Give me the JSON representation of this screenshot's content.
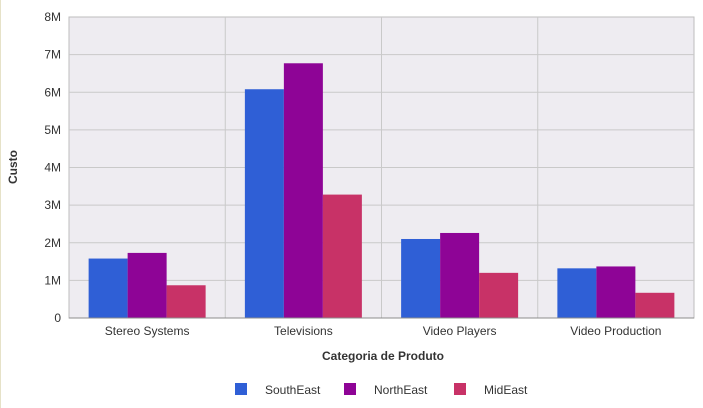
{
  "chart_data": {
    "type": "bar",
    "title": "",
    "xlabel": "Categoria de Produto",
    "ylabel": "Custo",
    "categories": [
      "Stereo Systems",
      "Televisions",
      "Video Players",
      "Video Production"
    ],
    "series": [
      {
        "name": "SouthEast",
        "color": "#2f5fd6",
        "values": [
          1.58,
          6.08,
          2.1,
          1.32
        ]
      },
      {
        "name": "NorthEast",
        "color": "#8e0496",
        "values": [
          1.73,
          6.77,
          2.26,
          1.37
        ]
      },
      {
        "name": "MidEast",
        "color": "#c83267",
        "values": [
          0.87,
          3.28,
          1.2,
          0.67
        ]
      }
    ],
    "ylim": [
      0,
      8
    ],
    "yticks": [
      {
        "value": 0,
        "label": "0"
      },
      {
        "value": 1,
        "label": "1M"
      },
      {
        "value": 2,
        "label": "2M"
      },
      {
        "value": 3,
        "label": "3M"
      },
      {
        "value": 4,
        "label": "4M"
      },
      {
        "value": 5,
        "label": "5M"
      },
      {
        "value": 6,
        "label": "6M"
      },
      {
        "value": 7,
        "label": "7M"
      },
      {
        "value": 8,
        "label": "8M"
      }
    ],
    "value_unit": "M",
    "grid": true,
    "plot_background": "#eeecf1",
    "legend_position": "bottom-center"
  }
}
